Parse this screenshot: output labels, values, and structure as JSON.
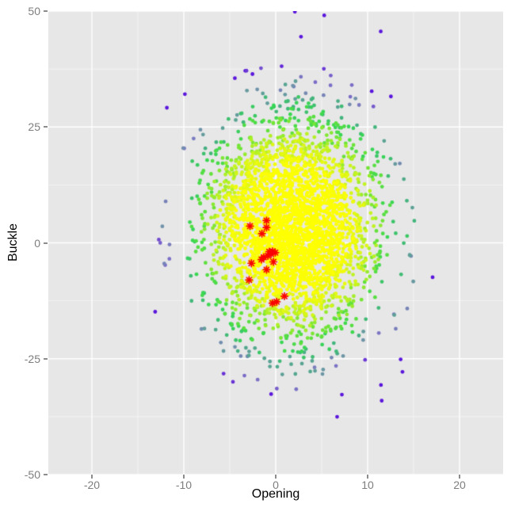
{
  "figure": {
    "background": "#FFFFFF"
  },
  "axes": {
    "xlabel": "Opening",
    "ylabel": "Buckle",
    "title_color": "#000000",
    "tick_label_color": "#7E7E7E",
    "tick_mark_color": "#8C8C8C"
  },
  "chart_data": {
    "type": "scatter",
    "title": "",
    "xlabel": "Opening",
    "ylabel": "Buckle",
    "xlim": [
      -24.74,
      24.74
    ],
    "ylim": [
      -50,
      50
    ],
    "grid": "on",
    "legend": "none",
    "panel_bg": "#E7E7E7",
    "grid_major_color": "#FFFFFF",
    "grid_minor_color": "rgba(255,255,255,0.55)",
    "x_ticks": [
      {
        "v": -20,
        "label": "-20"
      },
      {
        "v": -10,
        "label": "-10"
      },
      {
        "v": 0,
        "label": "0"
      },
      {
        "v": 10,
        "label": "10"
      },
      {
        "v": 20,
        "label": "20"
      }
    ],
    "y_ticks": [
      {
        "v": 50,
        "label": "50"
      },
      {
        "v": 25,
        "label": "25"
      },
      {
        "v": 0,
        "label": "0"
      },
      {
        "v": -25,
        "label": "-25"
      },
      {
        "v": -50,
        "label": "-50"
      }
    ],
    "x_minor": [
      -15,
      -5,
      5,
      15
    ],
    "y_minor": [
      37.5,
      12.5,
      -12.5,
      -37.5
    ],
    "density_cloud": {
      "description": "dense bivariate-normal point cloud colored by local density: yellow core, green mid, slate-blue low, violet outliers",
      "n": 3200,
      "seed": 42,
      "center": [
        1.8,
        3.0
      ],
      "sd": [
        4.5,
        12.0
      ],
      "color_sd": [
        5.8,
        13.2
      ],
      "color_t_scale": 2.75,
      "color_jitter": 0.12,
      "point_radius": 2.4,
      "palette": [
        {
          "t": 0.0,
          "c": "#FFFF00"
        },
        {
          "t": 0.36,
          "c": "#FBFE05"
        },
        {
          "t": 0.46,
          "c": "#DFF815"
        },
        {
          "t": 0.54,
          "c": "#AFF026"
        },
        {
          "t": 0.62,
          "c": "#64E23A"
        },
        {
          "t": 0.7,
          "c": "#37D655"
        },
        {
          "t": 0.78,
          "c": "#43B37E"
        },
        {
          "t": 0.85,
          "c": "#7292AB"
        },
        {
          "t": 0.91,
          "c": "#7C72C6"
        },
        {
          "t": 0.96,
          "c": "#7042D3"
        },
        {
          "t": 1.0,
          "c": "#5A16DC"
        }
      ]
    },
    "highlight_points": {
      "marker": "asterisk-8",
      "color": "#FB0000",
      "size": 4.3,
      "points": [
        [
          -1.0,
          4.8
        ],
        [
          -2.8,
          3.6
        ],
        [
          -1.0,
          3.3
        ],
        [
          -1.5,
          2.0
        ],
        [
          -0.7,
          -1.9
        ],
        [
          -0.35,
          -1.8
        ],
        [
          -0.05,
          -2.1
        ],
        [
          -0.5,
          -2.4
        ],
        [
          -0.85,
          -2.8
        ],
        [
          -1.3,
          -3.1
        ],
        [
          -1.55,
          -3.6
        ],
        [
          -0.25,
          -4.1
        ],
        [
          -2.65,
          -4.4
        ],
        [
          -1.0,
          -5.8
        ],
        [
          -2.9,
          -8.0
        ],
        [
          0.95,
          -11.5
        ],
        [
          0.1,
          -12.7
        ],
        [
          -0.35,
          -13.0
        ]
      ]
    }
  }
}
